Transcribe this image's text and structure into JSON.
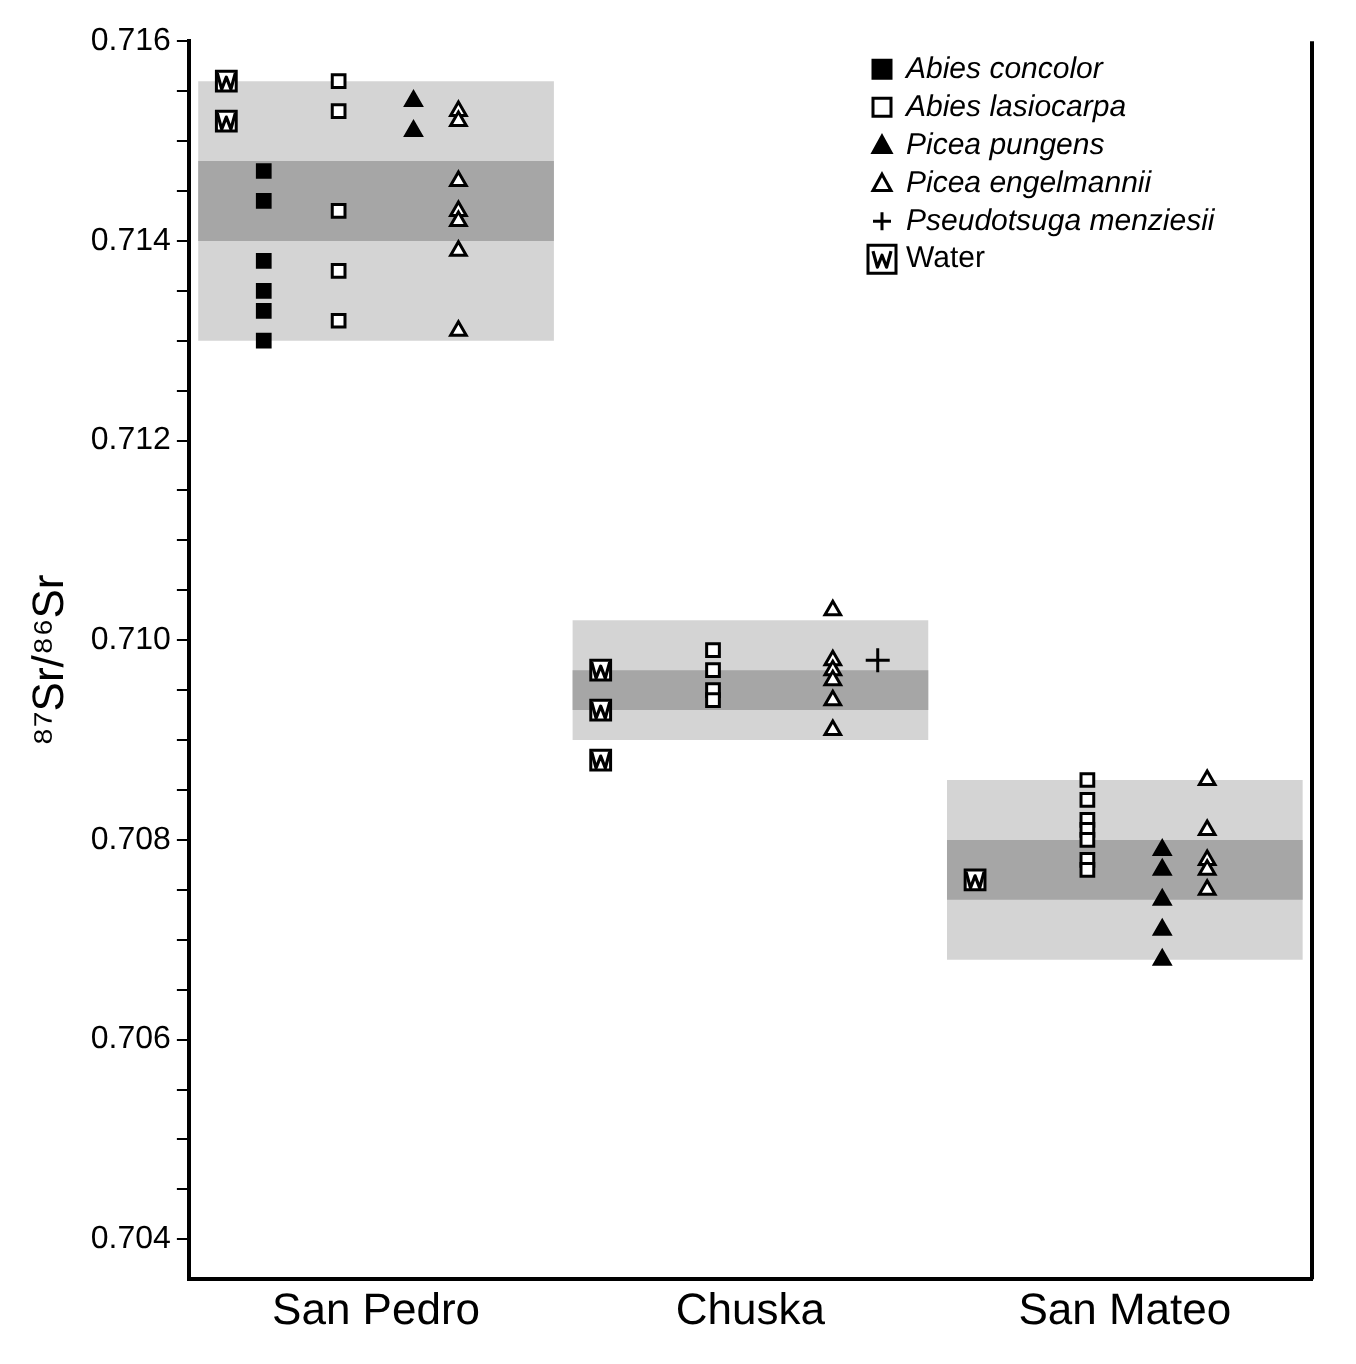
{
  "chart_data": {
    "type": "scatter",
    "ylabel": "⁸⁷Sr/⁸⁶Sr",
    "categories": [
      "San Pedro",
      "Chuska",
      "San Mateo"
    ],
    "ylim": [
      0.7036,
      0.716
    ],
    "yticks": [
      0.704,
      {
        "value": 0.7045,
        "label": null
      },
      {
        "value": 0.705,
        "label": null
      },
      {
        "value": 0.7055,
        "label": null
      },
      0.706,
      {
        "value": 0.7065,
        "label": null
      },
      {
        "value": 0.707,
        "label": null
      },
      {
        "value": 0.7075,
        "label": null
      },
      0.708,
      {
        "value": 0.7085,
        "label": null
      },
      {
        "value": 0.709,
        "label": null
      },
      {
        "value": 0.7095,
        "label": null
      },
      {
        "value": 0.71,
        "label": "0.710"
      },
      {
        "value": 0.7105,
        "label": null
      },
      {
        "value": 0.711,
        "label": null
      },
      {
        "value": 0.7115,
        "label": null
      },
      0.712,
      {
        "value": 0.7125,
        "label": null
      },
      {
        "value": 0.713,
        "label": null
      },
      {
        "value": 0.7135,
        "label": null
      },
      0.714,
      {
        "value": 0.7145,
        "label": null
      },
      {
        "value": 0.715,
        "label": null
      },
      {
        "value": 0.7155,
        "label": null
      },
      0.716
    ],
    "grid": false,
    "legend": "top right",
    "series": [
      {
        "type": "bar",
        "color": "#d4d4d4",
        "base": [
          0.713,
          0.709,
          0.7068
        ],
        "values": [
          0.0026,
          0.0012,
          0.0018
        ]
      },
      {
        "type": "bar",
        "color": "#a6a6a6",
        "base": [
          0.714,
          0.7093,
          0.7074
        ],
        "values": [
          0.0008,
          0.0004,
          0.0006
        ]
      },
      {
        "name": "Abies concolor",
        "marker": "square",
        "color": "#000000",
        "x": [
          "San Pedro",
          "San Pedro",
          "San Pedro",
          "San Pedro",
          "San Pedro",
          "San Pedro"
        ],
        "values": [
          0.7147,
          0.7144,
          0.7138,
          0.7135,
          0.7133,
          0.713
        ]
      },
      {
        "name": "Abies lasiocarpa",
        "marker": "square",
        "color": "#ffffff",
        "x": [
          "San Pedro",
          "San Pedro",
          "San Pedro",
          "San Pedro",
          "San Pedro",
          "Chuska",
          "Chuska",
          "Chuska",
          "Chuska",
          "San Mateo",
          "San Mateo",
          "San Mateo",
          "San Mateo",
          "San Mateo",
          "San Mateo",
          "San Mateo"
        ],
        "values": [
          0.7156,
          0.7153,
          0.7143,
          0.7137,
          0.7132,
          0.7099,
          0.7097,
          0.7095,
          0.7094,
          0.7086,
          0.7084,
          0.7082,
          0.7081,
          0.708,
          0.7078,
          0.7077
        ]
      },
      {
        "name": "Picea pungens",
        "marker": "triangle",
        "color": "#000000",
        "x": [
          "San Pedro",
          "San Pedro",
          "San Mateo",
          "San Mateo",
          "San Mateo",
          "San Mateo",
          "San Mateo"
        ],
        "values": [
          0.7154,
          0.7151,
          0.7079,
          0.7077,
          0.7074,
          0.7071,
          0.7068
        ]
      },
      {
        "name": "Picea engelmannii",
        "marker": "triangle",
        "color": "#ffffff",
        "x": [
          "San Pedro",
          "San Pedro",
          "San Pedro",
          "San Pedro",
          "San Pedro",
          "San Pedro",
          "San Pedro",
          "Chuska",
          "Chuska",
          "Chuska",
          "Chuska",
          "Chuska",
          "Chuska",
          "San Mateo",
          "San Mateo",
          "San Mateo",
          "San Mateo",
          "San Mateo"
        ],
        "values": [
          0.7153,
          0.7152,
          0.7146,
          0.7143,
          0.7142,
          0.7139,
          0.7131,
          0.7103,
          0.7098,
          0.7097,
          0.7096,
          0.7094,
          0.7091,
          0.7086,
          0.7081,
          0.7078,
          0.7077,
          0.7075
        ]
      },
      {
        "name": "Pseudotsuga menziesii",
        "marker": "cross",
        "color": "#000000",
        "x": [
          "Chuska"
        ],
        "values": [
          0.7098
        ]
      },
      {
        "name": "Water",
        "marker": "square",
        "color": "#ffffff",
        "x": [
          "San Pedro",
          "San Pedro",
          "Chuska",
          "Chuska",
          "Chuska",
          "San Mateo"
        ],
        "values": [
          0.7156,
          0.7152,
          0.7097,
          0.7093,
          0.7088,
          0.7076
        ]
      }
    ]
  }
}
